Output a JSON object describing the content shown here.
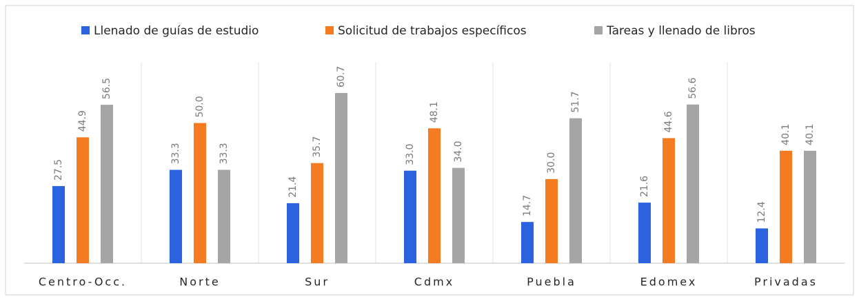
{
  "chart_data": {
    "type": "bar",
    "categories": [
      "Centro-Occ.",
      "Norte",
      "Sur",
      "Cdmx",
      "Puebla",
      "Edomex",
      "Privadas"
    ],
    "series": [
      {
        "name": "Llenado de guías de estudio",
        "color": "#2a62e0",
        "values": [
          27.5,
          33.3,
          21.4,
          33.0,
          14.7,
          21.6,
          12.4
        ],
        "value_labels": [
          "27.5",
          "33.3",
          "21.4",
          "33.0",
          "14.7",
          "21.6",
          "12.4"
        ]
      },
      {
        "name": "Solicitud de trabajos específicos",
        "color": "#f47b20",
        "values": [
          44.9,
          50.0,
          35.7,
          48.1,
          30.0,
          44.6,
          40.1
        ],
        "value_labels": [
          "44.9",
          "50.0",
          "35.7",
          "48.1",
          "30.0",
          "44.6",
          "40.1"
        ]
      },
      {
        "name": "Tareas y llenado de libros",
        "color": "#a5a5a5",
        "values": [
          56.5,
          33.3,
          60.7,
          34.0,
          51.7,
          56.6,
          40.1
        ],
        "value_labels": [
          "56.5",
          "33.3",
          "60.7",
          "34.0",
          "51.7",
          "56.6",
          "40.1"
        ]
      }
    ],
    "legend": "top"
  }
}
